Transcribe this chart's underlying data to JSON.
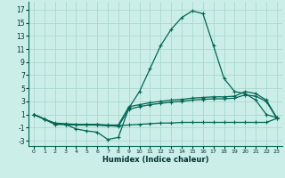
{
  "xlabel": "Humidex (Indice chaleur)",
  "xlim": [
    -0.5,
    23.5
  ],
  "ylim": [
    -3.8,
    18.2
  ],
  "yticks": [
    -3,
    -1,
    1,
    3,
    5,
    7,
    9,
    11,
    13,
    15,
    17
  ],
  "xticks": [
    0,
    1,
    2,
    3,
    4,
    5,
    6,
    7,
    8,
    9,
    10,
    11,
    12,
    13,
    14,
    15,
    16,
    17,
    18,
    19,
    20,
    21,
    22,
    23
  ],
  "bg_color": "#cceee8",
  "grid_color": "#aad8d0",
  "line_color": "#006655",
  "line1_x": [
    0,
    1,
    2,
    3,
    4,
    5,
    6,
    7,
    8,
    9,
    10,
    11,
    12,
    13,
    14,
    15,
    16,
    17,
    18,
    19,
    20,
    21,
    22,
    23
  ],
  "line1_y": [
    1.0,
    0.3,
    -0.5,
    -0.5,
    -1.2,
    -1.5,
    -1.7,
    -2.8,
    -2.5,
    2.0,
    4.5,
    8.0,
    11.5,
    14.0,
    15.8,
    16.8,
    16.4,
    11.5,
    6.5,
    4.5,
    4.2,
    3.2,
    1.0,
    0.5
  ],
  "line2_x": [
    0,
    1,
    2,
    3,
    4,
    5,
    6,
    7,
    8,
    9,
    10,
    11,
    12,
    13,
    14,
    15,
    16,
    17,
    18,
    19,
    20,
    21,
    22,
    23
  ],
  "line2_y": [
    1.0,
    0.3,
    -0.3,
    -0.4,
    -0.5,
    -0.5,
    -0.5,
    -0.6,
    -0.6,
    2.2,
    2.5,
    2.8,
    3.0,
    3.2,
    3.3,
    3.5,
    3.6,
    3.7,
    3.7,
    3.8,
    4.5,
    4.2,
    3.2,
    0.5
  ],
  "line3_x": [
    0,
    1,
    2,
    3,
    4,
    5,
    6,
    7,
    8,
    9,
    10,
    11,
    12,
    13,
    14,
    15,
    16,
    17,
    18,
    19,
    20,
    21,
    22,
    23
  ],
  "line3_y": [
    1.0,
    0.3,
    -0.4,
    -0.5,
    -0.6,
    -0.6,
    -0.6,
    -0.7,
    -0.8,
    1.8,
    2.2,
    2.5,
    2.7,
    2.9,
    3.0,
    3.2,
    3.3,
    3.4,
    3.4,
    3.5,
    4.0,
    3.8,
    3.0,
    0.4
  ],
  "line4_x": [
    0,
    1,
    2,
    3,
    4,
    5,
    6,
    7,
    8,
    9,
    10,
    11,
    12,
    13,
    14,
    15,
    16,
    17,
    18,
    19,
    20,
    21,
    22,
    23
  ],
  "line4_y": [
    1.0,
    0.3,
    -0.5,
    -0.5,
    -0.6,
    -0.6,
    -0.6,
    -0.7,
    -0.7,
    -0.6,
    -0.5,
    -0.4,
    -0.3,
    -0.3,
    -0.2,
    -0.2,
    -0.2,
    -0.2,
    -0.2,
    -0.2,
    -0.2,
    -0.2,
    -0.2,
    0.4
  ]
}
